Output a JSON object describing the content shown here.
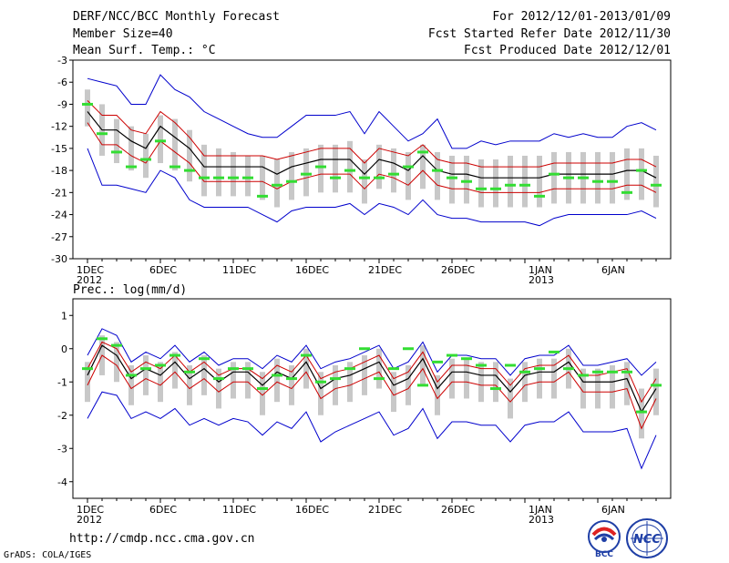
{
  "header": {
    "title": "DERF/NCC/BCC Monthly Forecast",
    "member_size": "Member Size=40",
    "variable_temp": "Mean Surf. Temp.: °C",
    "period": "For 2012/12/01-2013/01/09",
    "fcst_started": "Fcst Started Refer Date 2012/11/30",
    "fcst_produced": "Fcst Produced Date 2012/12/01"
  },
  "footer": {
    "url": "http://cmdp.ncc.cma.gov.cn",
    "grads": "GrADS: COLA/IGES"
  },
  "logos": {
    "bcc": "BCC",
    "ncc": "NCC"
  },
  "colors": {
    "ensemble_range": "#0000cc",
    "spread": "#cc0000",
    "mean": "#000000",
    "box": "#c8c8c8",
    "observation": "#33dd33"
  },
  "chart_data": [
    {
      "type": "line",
      "title": "Mean Surf. Temp.: °C",
      "xlabel": "",
      "ylabel": "°C",
      "ylim": [
        -30,
        -3
      ],
      "yticks": [
        -3,
        -6,
        -9,
        -12,
        -15,
        -18,
        -21,
        -24,
        -27,
        -30
      ],
      "x_tick_labels": [
        {
          "day": 1,
          "label": "1DEC",
          "sublabel": "2012"
        },
        {
          "day": 6,
          "label": "6DEC"
        },
        {
          "day": 11,
          "label": "11DEC"
        },
        {
          "day": 16,
          "label": "16DEC"
        },
        {
          "day": 21,
          "label": "21DEC"
        },
        {
          "day": 26,
          "label": "26DEC"
        },
        {
          "day": 32,
          "label": "1JAN",
          "sublabel": "2013"
        },
        {
          "day": 37,
          "label": "6JAN"
        }
      ],
      "days": 40,
      "series": [
        {
          "name": "ensemble max",
          "values": [
            -5.5,
            -6,
            -6.5,
            -9,
            -9,
            -5,
            -7,
            -8,
            -10,
            -11,
            -12,
            -13,
            -13.5,
            -13.5,
            -12,
            -10.5,
            -10.5,
            -10.5,
            -10,
            -13,
            -10,
            -12,
            -14,
            -13,
            -11,
            -15,
            -15,
            -14,
            -14.5,
            -14,
            -14,
            -14,
            -13,
            -13.5,
            -13,
            -13.5,
            -13.5,
            -12,
            -11.5,
            -12.5
          ]
        },
        {
          "name": "spread upper",
          "values": [
            -8.5,
            -10.5,
            -10.5,
            -12.5,
            -13,
            -10,
            -11.5,
            -13.5,
            -16,
            -16,
            -16,
            -16,
            -16,
            -16.5,
            -16,
            -15.5,
            -15,
            -15,
            -15,
            -17,
            -15,
            -15.5,
            -16,
            -14.5,
            -16.5,
            -17,
            -17,
            -17.5,
            -17.5,
            -17.5,
            -17.5,
            -17.5,
            -17,
            -17,
            -17,
            -17,
            -17,
            -16.5,
            -16.5,
            -17.5
          ]
        },
        {
          "name": "ensemble mean",
          "values": [
            -10,
            -12.5,
            -12.5,
            -14,
            -15,
            -12,
            -13.5,
            -15,
            -17.5,
            -17.5,
            -17.5,
            -17.5,
            -17.5,
            -18.5,
            -17.5,
            -17,
            -16.5,
            -16.5,
            -16.5,
            -18.5,
            -16.5,
            -17,
            -18,
            -16,
            -18,
            -18.5,
            -18.5,
            -19,
            -19,
            -19,
            -19,
            -19,
            -18.5,
            -18.5,
            -18.5,
            -18.5,
            -18.5,
            -18,
            -18,
            -19
          ]
        },
        {
          "name": "spread lower",
          "values": [
            -11.5,
            -14.5,
            -14.5,
            -16,
            -17,
            -14,
            -15.5,
            -17,
            -19.5,
            -19.5,
            -19.5,
            -19.5,
            -19.5,
            -20.5,
            -19.5,
            -19,
            -18.5,
            -18.5,
            -18.5,
            -20.5,
            -18.5,
            -19,
            -20,
            -18,
            -20,
            -20.5,
            -20.5,
            -21,
            -21,
            -21,
            -21,
            -21,
            -20.5,
            -20.5,
            -20.5,
            -20.5,
            -20.5,
            -20,
            -20,
            -21
          ]
        },
        {
          "name": "ensemble min",
          "values": [
            -15,
            -20,
            -20,
            -20.5,
            -21,
            -18,
            -19,
            -22,
            -23,
            -23,
            -23,
            -23,
            -24,
            -25,
            -23.5,
            -23,
            -23,
            -23,
            -22.5,
            -24,
            -22.5,
            -23,
            -24,
            -22,
            -24,
            -24.5,
            -24.5,
            -25,
            -25,
            -25,
            -25,
            -25.5,
            -24.5,
            -24,
            -24,
            -24,
            -24,
            -24,
            -23.5,
            -24.5
          ]
        },
        {
          "name": "box upper",
          "values": [
            -7,
            -9,
            -11,
            -12,
            -13,
            -10.5,
            -11,
            -12.5,
            -14.5,
            -15,
            -15.5,
            -16,
            -16,
            -16.5,
            -15.5,
            -15,
            -14.5,
            -14.5,
            -14,
            -16.5,
            -14.5,
            -15,
            -15.5,
            -14.5,
            -15.5,
            -16,
            -16,
            -16.5,
            -16.5,
            -16,
            -16,
            -16,
            -15.5,
            -15.5,
            -15.5,
            -15.5,
            -15.5,
            -15,
            -15,
            -16
          ]
        },
        {
          "name": "box lower",
          "values": [
            -12,
            -16,
            -17,
            -18,
            -19,
            -17,
            -18,
            -19.5,
            -21.5,
            -21.5,
            -21.5,
            -21.5,
            -22,
            -23,
            -22,
            -21.5,
            -21,
            -21,
            -21,
            -22.5,
            -20.5,
            -21,
            -22,
            -20.5,
            -22,
            -22.5,
            -22.5,
            -23,
            -23,
            -23,
            -23,
            -23,
            -22.5,
            -22.5,
            -22.5,
            -22.5,
            -22.5,
            -22,
            -22,
            -23
          ]
        },
        {
          "name": "observation",
          "values": [
            -9,
            -13,
            -15.5,
            -17.5,
            -16.5,
            -14,
            -17.5,
            -18,
            -19,
            -19,
            -19,
            -19,
            -21.5,
            -20,
            -19.5,
            -18.5,
            -17.5,
            -19,
            -18,
            -19,
            -19,
            -18.5,
            -17.5,
            -15.5,
            -18,
            -19,
            -19.5,
            -20.5,
            -20.5,
            -20,
            -20,
            -21.5,
            -18.5,
            -19,
            -19,
            -19.5,
            -19.5,
            -21,
            -18,
            -20
          ]
        }
      ]
    },
    {
      "type": "line",
      "title": "Prec.: log(mm/d)",
      "xlabel": "",
      "ylabel": "log(mm/d)",
      "ylim": [
        -4.5,
        1.5
      ],
      "yticks": [
        1,
        0,
        -1,
        -2,
        -3,
        -4
      ],
      "x_tick_labels": [
        {
          "day": 1,
          "label": "1DEC",
          "sublabel": "2012"
        },
        {
          "day": 6,
          "label": "6DEC"
        },
        {
          "day": 11,
          "label": "11DEC"
        },
        {
          "day": 16,
          "label": "16DEC"
        },
        {
          "day": 21,
          "label": "21DEC"
        },
        {
          "day": 26,
          "label": "26DEC"
        },
        {
          "day": 32,
          "label": "1JAN",
          "sublabel": "2013"
        },
        {
          "day": 37,
          "label": "6JAN"
        }
      ],
      "days": 40,
      "series": [
        {
          "name": "ensemble max",
          "values": [
            -0.2,
            0.6,
            0.4,
            -0.4,
            -0.1,
            -0.3,
            0.1,
            -0.4,
            -0.1,
            -0.5,
            -0.3,
            -0.3,
            -0.6,
            -0.2,
            -0.4,
            0.1,
            -0.6,
            -0.4,
            -0.3,
            -0.1,
            0.1,
            -0.6,
            -0.4,
            0.2,
            -0.7,
            -0.2,
            -0.2,
            -0.3,
            -0.3,
            -0.8,
            -0.3,
            -0.2,
            -0.2,
            0.1,
            -0.5,
            -0.5,
            -0.4,
            -0.3,
            -0.8,
            -0.4
          ]
        },
        {
          "name": "spread upper",
          "values": [
            -0.6,
            0.2,
            0,
            -0.7,
            -0.4,
            -0.6,
            -0.2,
            -0.7,
            -0.4,
            -0.8,
            -0.6,
            -0.6,
            -0.9,
            -0.5,
            -0.7,
            -0.2,
            -0.9,
            -0.7,
            -0.6,
            -0.4,
            -0.2,
            -0.9,
            -0.7,
            -0.1,
            -1,
            -0.5,
            -0.5,
            -0.6,
            -0.6,
            -1.1,
            -0.6,
            -0.5,
            -0.5,
            -0.2,
            -0.8,
            -0.8,
            -0.7,
            -0.6,
            -1.6,
            -0.9
          ]
        },
        {
          "name": "ensemble mean",
          "values": [
            -0.8,
            0.1,
            -0.2,
            -0.9,
            -0.6,
            -0.8,
            -0.4,
            -0.9,
            -0.6,
            -1,
            -0.7,
            -0.7,
            -1.1,
            -0.7,
            -0.9,
            -0.4,
            -1.2,
            -0.9,
            -0.8,
            -0.6,
            -0.4,
            -1.1,
            -0.9,
            -0.3,
            -1.2,
            -0.7,
            -0.7,
            -0.8,
            -0.8,
            -1.3,
            -0.8,
            -0.7,
            -0.7,
            -0.4,
            -1,
            -1,
            -1,
            -0.9,
            -1.9,
            -1.2
          ]
        },
        {
          "name": "spread lower",
          "values": [
            -1.1,
            -0.2,
            -0.5,
            -1.2,
            -0.9,
            -1.1,
            -0.7,
            -1.2,
            -0.9,
            -1.3,
            -1,
            -1,
            -1.4,
            -1,
            -1.2,
            -0.7,
            -1.5,
            -1.2,
            -1.1,
            -0.9,
            -0.7,
            -1.4,
            -1.2,
            -0.6,
            -1.5,
            -1,
            -1,
            -1.1,
            -1.1,
            -1.6,
            -1.1,
            -1,
            -1,
            -0.7,
            -1.3,
            -1.3,
            -1.3,
            -1.2,
            -2.4,
            -1.5
          ]
        },
        {
          "name": "ensemble min",
          "values": [
            -2.1,
            -1.3,
            -1.4,
            -2.1,
            -1.9,
            -2.1,
            -1.8,
            -2.3,
            -2.1,
            -2.3,
            -2.1,
            -2.2,
            -2.6,
            -2.2,
            -2.4,
            -1.9,
            -2.8,
            -2.5,
            -2.3,
            -2.1,
            -1.9,
            -2.6,
            -2.4,
            -1.8,
            -2.7,
            -2.2,
            -2.2,
            -2.3,
            -2.3,
            -2.8,
            -2.3,
            -2.2,
            -2.2,
            -1.9,
            -2.5,
            -2.5,
            -2.5,
            -2.4,
            -3.6,
            -2.6
          ]
        },
        {
          "name": "box upper",
          "values": [
            -0.4,
            0.4,
            0.2,
            -0.5,
            -0.2,
            -0.4,
            -0.1,
            -0.5,
            -0.2,
            -0.6,
            -0.4,
            -0.4,
            -0.7,
            -0.3,
            -0.5,
            0,
            -0.7,
            -0.5,
            -0.4,
            -0.2,
            0,
            -0.7,
            -0.5,
            0.1,
            -0.8,
            -0.3,
            -0.3,
            -0.4,
            -0.4,
            -0.9,
            -0.4,
            -0.3,
            -0.3,
            0,
            -0.6,
            -0.6,
            -0.5,
            -0.4,
            -1.2,
            -0.6
          ]
        },
        {
          "name": "box lower",
          "values": [
            -1.6,
            -0.8,
            -1,
            -1.7,
            -1.4,
            -1.6,
            -1.2,
            -1.7,
            -1.4,
            -1.8,
            -1.5,
            -1.5,
            -2,
            -1.6,
            -1.7,
            -1.2,
            -2,
            -1.7,
            -1.6,
            -1.4,
            -1.2,
            -1.9,
            -1.7,
            -1.1,
            -2,
            -1.5,
            -1.5,
            -1.6,
            -1.6,
            -2.1,
            -1.6,
            -1.5,
            -1.5,
            -1.2,
            -1.8,
            -1.8,
            -1.8,
            -1.7,
            -2.7,
            -2
          ]
        },
        {
          "name": "observation",
          "values": [
            -0.6,
            0.3,
            0.1,
            -0.8,
            -0.6,
            -0.5,
            -0.2,
            -0.7,
            -0.3,
            -0.9,
            -0.6,
            -0.6,
            -1.2,
            -0.8,
            -0.9,
            -0.2,
            -1,
            -0.9,
            -0.6,
            0,
            -0.9,
            -0.6,
            0,
            -1.1,
            -0.4,
            -0.2,
            -0.3,
            -0.5,
            -1.2,
            -0.5,
            -0.7,
            -0.6,
            -0.1,
            -0.6,
            -0.8,
            -0.7,
            -0.7,
            -0.7,
            -1.9,
            -1.1
          ]
        }
      ]
    }
  ]
}
